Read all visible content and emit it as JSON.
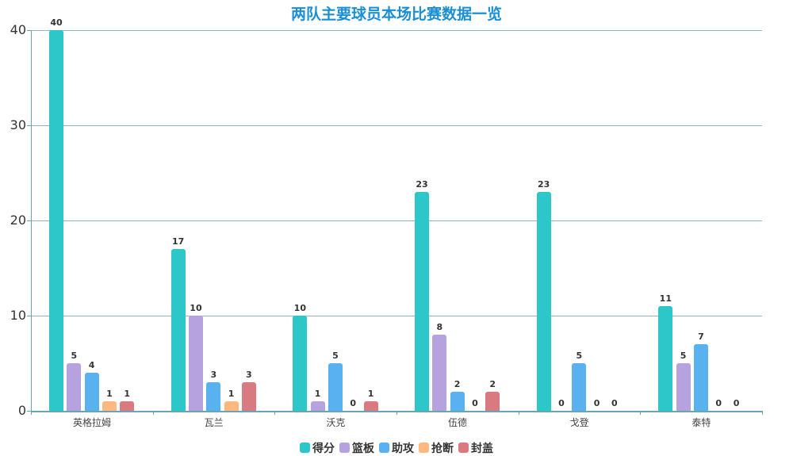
{
  "title": "两队主要球员本场比赛数据一览",
  "colors": [
    "#2ec7c9",
    "#b6a2de",
    "#5ab1ef",
    "#ffb980",
    "#d87a80"
  ],
  "chart_data": {
    "type": "bar",
    "title": "两队主要球员本场比赛数据一览",
    "xlabel": "",
    "ylabel": "",
    "ylim": [
      0,
      40
    ],
    "yticks": [
      0,
      10,
      20,
      30,
      40
    ],
    "grid": true,
    "legend_position": "bottom",
    "categories": [
      "英格拉姆",
      "瓦兰",
      "沃克",
      "伍德",
      "戈登",
      "泰特"
    ],
    "series": [
      {
        "name": "得分",
        "values": [
          40,
          17,
          10,
          23,
          23,
          11
        ]
      },
      {
        "name": "篮板",
        "values": [
          5,
          10,
          1,
          8,
          0,
          5
        ]
      },
      {
        "name": "助攻",
        "values": [
          4,
          3,
          5,
          2,
          5,
          7
        ]
      },
      {
        "name": "抢断",
        "values": [
          1,
          1,
          0,
          0,
          0,
          0
        ]
      },
      {
        "name": "封盖",
        "values": [
          1,
          3,
          1,
          2,
          0,
          0
        ]
      }
    ]
  }
}
